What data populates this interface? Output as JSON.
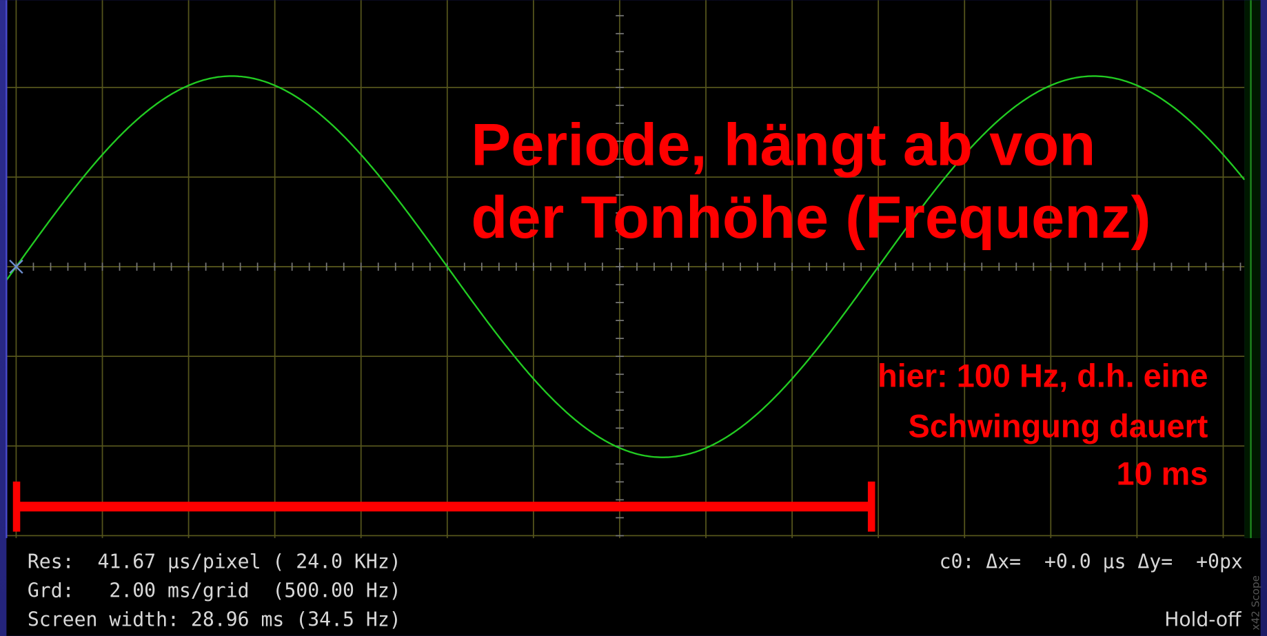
{
  "annotation": {
    "title_lines": [
      "Periode, hängt ab von",
      "der Tonhöhe (Frequenz)"
    ],
    "note_lines": [
      "hier: 100 Hz, d.h. eine",
      "Schwingung dauert",
      "10 ms"
    ]
  },
  "status": {
    "left_lines": [
      "Res:  41.67 µs/pixel ( 24.0 KHz)",
      "Grd:   2.00 ms/grid  (500.00 Hz)",
      "Screen width: 28.96 ms (34.5 Hz)"
    ],
    "cursor": "c0: Δx=  +0.0 µs Δy=  +0px",
    "mode": "Hold-off",
    "brand": "x42 Scope"
  }
}
